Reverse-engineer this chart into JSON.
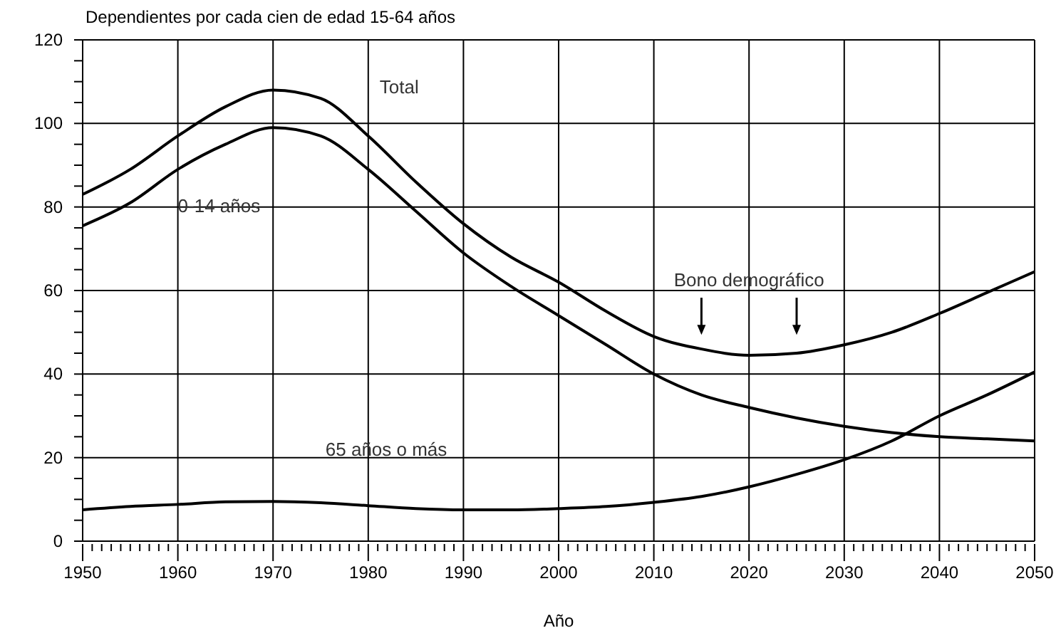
{
  "chart_data": {
    "type": "line",
    "ylabel": "Dependientes por cada cien de edad 15-64 años",
    "xlabel": "Año",
    "x": [
      1950,
      1955,
      1960,
      1965,
      1970,
      1975,
      1980,
      1985,
      1990,
      1995,
      2000,
      2005,
      2010,
      2015,
      2020,
      2025,
      2030,
      2035,
      2040,
      2045,
      2050
    ],
    "series": [
      {
        "name": "Total",
        "color": "#000000",
        "values": [
          83,
          89,
          97,
          104,
          108,
          106,
          97,
          86,
          76,
          68,
          62,
          55,
          49,
          46,
          44.5,
          45,
          47,
          50,
          54.5,
          59.5,
          64.5
        ]
      },
      {
        "name": "0-14 años",
        "color": "#000000",
        "values": [
          75.5,
          81,
          89,
          95,
          99,
          97,
          89,
          79,
          69,
          61,
          54,
          47,
          40,
          35,
          32,
          29.5,
          27.5,
          26,
          25,
          24.5,
          24
        ]
      },
      {
        "name": "65 años o más",
        "color": "#000000",
        "values": [
          7.5,
          8.3,
          8.8,
          9.4,
          9.5,
          9.2,
          8.5,
          7.8,
          7.5,
          7.5,
          7.8,
          8.3,
          9.3,
          10.7,
          13,
          16,
          19.5,
          24,
          30,
          35,
          40.5
        ]
      }
    ],
    "annotations": [
      "Bono demográfico"
    ],
    "xlim": [
      1950,
      2050
    ],
    "xticks": [
      1950,
      {
        "value": 1951,
        "label": null
      },
      {
        "value": 1952,
        "label": null
      },
      {
        "value": 1953,
        "label": null
      },
      {
        "value": 1954,
        "label": null
      },
      {
        "value": 1955,
        "label": null
      },
      {
        "value": 1956,
        "label": null
      },
      {
        "value": 1957,
        "label": null
      },
      {
        "value": 1958,
        "label": null
      },
      {
        "value": 1959,
        "label": null
      },
      1960,
      {
        "value": 1961,
        "label": null
      },
      {
        "value": 1962,
        "label": null
      },
      {
        "value": 1963,
        "label": null
      },
      {
        "value": 1964,
        "label": null
      },
      {
        "value": 1965,
        "label": null
      },
      {
        "value": 1966,
        "label": null
      },
      {
        "value": 1967,
        "label": null
      },
      {
        "value": 1968,
        "label": null
      },
      {
        "value": 1969,
        "label": null
      },
      1970,
      {
        "value": 1971,
        "label": null
      },
      {
        "value": 1972,
        "label": null
      },
      {
        "value": 1973,
        "label": null
      },
      {
        "value": 1974,
        "label": null
      },
      {
        "value": 1975,
        "label": null
      },
      {
        "value": 1976,
        "label": null
      },
      {
        "value": 1977,
        "label": null
      },
      {
        "value": 1978,
        "label": null
      },
      {
        "value": 1979,
        "label": null
      },
      1980,
      {
        "value": 1981,
        "label": null
      },
      {
        "value": 1982,
        "label": null
      },
      {
        "value": 1983,
        "label": null
      },
      {
        "value": 1984,
        "label": null
      },
      {
        "value": 1985,
        "label": null
      },
      {
        "value": 1986,
        "label": null
      },
      {
        "value": 1987,
        "label": null
      },
      {
        "value": 1988,
        "label": null
      },
      {
        "value": 1989,
        "label": null
      },
      1990,
      {
        "value": 1991,
        "label": null
      },
      {
        "value": 1992,
        "label": null
      },
      {
        "value": 1993,
        "label": null
      },
      {
        "value": 1994,
        "label": null
      },
      {
        "value": 1995,
        "label": null
      },
      {
        "value": 1996,
        "label": null
      },
      {
        "value": 1997,
        "label": null
      },
      {
        "value": 1998,
        "label": null
      },
      {
        "value": 1999,
        "label": null
      },
      2000,
      {
        "value": 2001,
        "label": null
      },
      {
        "value": 2002,
        "label": null
      },
      {
        "value": 2003,
        "label": null
      },
      {
        "value": 2004,
        "label": null
      },
      {
        "value": 2005,
        "label": null
      },
      {
        "value": 2006,
        "label": null
      },
      {
        "value": 2007,
        "label": null
      },
      {
        "value": 2008,
        "label": null
      },
      {
        "value": 2009,
        "label": null
      },
      2010,
      {
        "value": 2011,
        "label": null
      },
      {
        "value": 2012,
        "label": null
      },
      {
        "value": 2013,
        "label": null
      },
      {
        "value": 2014,
        "label": null
      },
      {
        "value": 2015,
        "label": null
      },
      {
        "value": 2016,
        "label": null
      },
      {
        "value": 2017,
        "label": null
      },
      {
        "value": 2018,
        "label": null
      },
      {
        "value": 2019,
        "label": null
      },
      2020,
      {
        "value": 2021,
        "label": null
      },
      {
        "value": 2022,
        "label": null
      },
      {
        "value": 2023,
        "label": null
      },
      {
        "value": 2024,
        "label": null
      },
      {
        "value": 2025,
        "label": null
      },
      {
        "value": 2026,
        "label": null
      },
      {
        "value": 2027,
        "label": null
      },
      {
        "value": 2028,
        "label": null
      },
      {
        "value": 2029,
        "label": null
      },
      2030,
      {
        "value": 2031,
        "label": null
      },
      {
        "value": 2032,
        "label": null
      },
      {
        "value": 2033,
        "label": null
      },
      {
        "value": 2034,
        "label": null
      },
      {
        "value": 2035,
        "label": null
      },
      {
        "value": 2036,
        "label": null
      },
      {
        "value": 2037,
        "label": null
      },
      {
        "value": 2038,
        "label": null
      },
      {
        "value": 2039,
        "label": null
      },
      2040,
      {
        "value": 2041,
        "label": null
      },
      {
        "value": 2042,
        "label": null
      },
      {
        "value": 2043,
        "label": null
      },
      {
        "value": 2044,
        "label": null
      },
      {
        "value": 2045,
        "label": null
      },
      {
        "value": 2046,
        "label": null
      },
      {
        "value": 2047,
        "label": null
      },
      {
        "value": 2048,
        "label": null
      },
      {
        "value": 2049,
        "label": null
      },
      2050
    ],
    "ylim": [
      0,
      120
    ],
    "yticks": [
      0,
      {
        "value": 5,
        "label": null
      },
      {
        "value": 10,
        "label": null
      },
      {
        "value": 15,
        "label": null
      },
      20,
      {
        "value": 25,
        "label": null
      },
      {
        "value": 30,
        "label": null
      },
      {
        "value": 35,
        "label": null
      },
      40,
      {
        "value": 45,
        "label": null
      },
      {
        "value": 50,
        "label": null
      },
      {
        "value": 55,
        "label": null
      },
      60,
      {
        "value": 65,
        "label": null
      },
      {
        "value": 70,
        "label": null
      },
      {
        "value": 75,
        "label": null
      },
      80,
      {
        "value": 85,
        "label": null
      },
      {
        "value": 90,
        "label": null
      },
      {
        "value": 95,
        "label": null
      },
      100,
      {
        "value": 105,
        "label": null
      },
      {
        "value": 110,
        "label": null
      },
      {
        "value": 115,
        "label": null
      },
      120
    ],
    "grid": true,
    "marker": "none",
    "line_style": "solid"
  }
}
